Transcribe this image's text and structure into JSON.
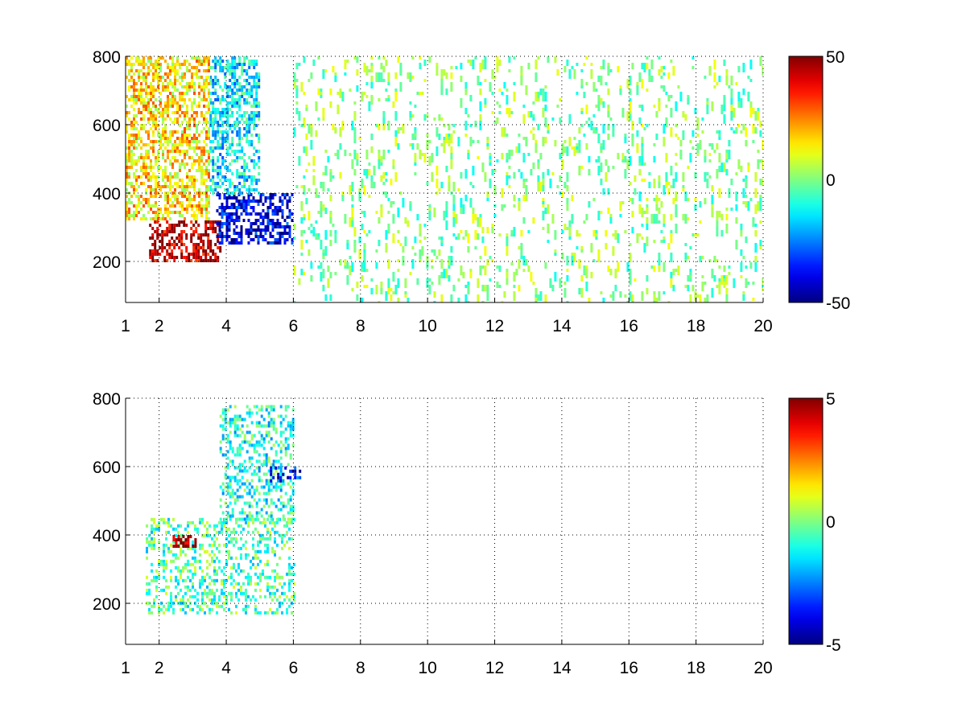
{
  "chart_data": [
    {
      "type": "heatmap",
      "xlim": [
        1,
        20
      ],
      "ylim": [
        80,
        800
      ],
      "x_ticks": [
        "1",
        "2",
        "4",
        "6",
        "8",
        "10",
        "12",
        "14",
        "16",
        "18",
        "20"
      ],
      "x_tick_values": [
        1,
        2,
        4,
        6,
        8,
        10,
        12,
        14,
        16,
        18,
        20
      ],
      "y_ticks": [
        "200",
        "400",
        "600",
        "800"
      ],
      "y_tick_values": [
        200,
        400,
        600,
        800
      ],
      "grid": true,
      "grid_style": "dotted",
      "colormap": "jet",
      "colorbar": {
        "ticks": [
          "50",
          "0",
          "-50"
        ],
        "tick_values": [
          50,
          0,
          -50
        ],
        "range": [
          -50,
          50
        ]
      },
      "data_regions": [
        {
          "x_range": [
            1.7,
            3.8
          ],
          "y_range": [
            200,
            320
          ],
          "value": 45,
          "description": ""
        },
        {
          "x_range": [
            3.7,
            6.0
          ],
          "y_range": [
            250,
            400
          ],
          "value": -40
        },
        {
          "x_range": [
            3.5,
            5.0
          ],
          "y_range": [
            400,
            800
          ],
          "value": -15
        },
        {
          "x_range": [
            1,
            3.5
          ],
          "y_range": [
            320,
            800
          ],
          "value": 15
        },
        {
          "x_range": [
            6,
            20
          ],
          "y_range": [
            80,
            800
          ],
          "value": 0,
          "sparse": true
        }
      ]
    },
    {
      "type": "heatmap",
      "xlim": [
        1,
        20
      ],
      "ylim": [
        80,
        800
      ],
      "x_ticks": [
        "1",
        "2",
        "4",
        "6",
        "8",
        "10",
        "12",
        "14",
        "16",
        "18",
        "20"
      ],
      "x_tick_values": [
        1,
        2,
        4,
        6,
        8,
        10,
        12,
        14,
        16,
        18,
        20
      ],
      "y_ticks": [
        "200",
        "400",
        "600",
        "800"
      ],
      "y_tick_values": [
        200,
        400,
        600,
        800
      ],
      "grid": true,
      "grid_style": "dotted",
      "colormap": "jet",
      "colorbar": {
        "ticks": [
          "5",
          "0",
          "-5"
        ],
        "tick_values": [
          5,
          0,
          -5
        ],
        "range": [
          -5,
          5
        ]
      },
      "data_regions": [
        {
          "x_range": [
            1.6,
            6.0
          ],
          "y_range": [
            170,
            450
          ],
          "value": -0.5
        },
        {
          "x_range": [
            3.8,
            6.0
          ],
          "y_range": [
            450,
            780
          ],
          "value": -1
        },
        {
          "x_range": [
            2.4,
            3.1
          ],
          "y_range": [
            370,
            400
          ],
          "value": 5
        },
        {
          "x_range": [
            5.3,
            6.2
          ],
          "y_range": [
            560,
            610
          ],
          "value": -3.5
        }
      ]
    }
  ]
}
